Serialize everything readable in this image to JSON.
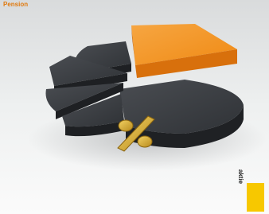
{
  "header": {
    "title": "Pension"
  },
  "footer": {
    "label": "aktie"
  }
}
